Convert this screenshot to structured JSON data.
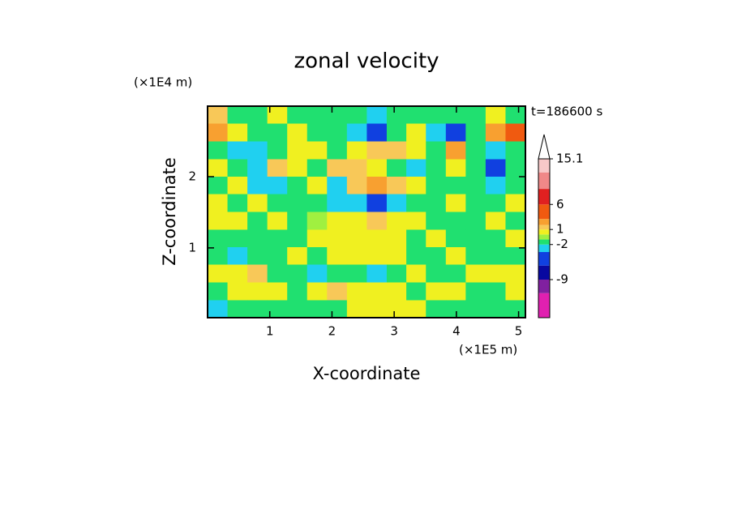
{
  "chart_data": {
    "type": "contour",
    "title": "zonal velocity",
    "xlabel": "X-coordinate",
    "ylabel": "Z-coordinate",
    "xunit": "(×1E5 m)",
    "yunit": "(×1E4 m)",
    "annotation": "t=186600 s",
    "xlim": [
      0,
      5.11
    ],
    "ylim": [
      0.02,
      2.99
    ],
    "xticks": [
      1,
      2,
      3,
      4,
      5
    ],
    "yticks": [
      1,
      2
    ],
    "x": [
      0.16,
      0.48,
      0.8,
      1.12,
      1.44,
      1.76,
      2.08,
      2.4,
      2.72,
      3.04,
      3.35,
      3.67,
      3.99,
      4.31,
      4.63,
      4.95
    ],
    "y": [
      2.87,
      2.62,
      2.37,
      2.12,
      1.88,
      1.63,
      1.38,
      1.13,
      0.89,
      0.64,
      0.39,
      0.14
    ],
    "z": [
      [
        1.5,
        -1.5,
        -1.5,
        0.5,
        -1.5,
        -1.5,
        -1.5,
        -1.5,
        -2.7,
        -1.5,
        -1.5,
        -1.5,
        -1.5,
        -1.5,
        0.5,
        -1.5
      ],
      [
        2.5,
        0.5,
        -1.5,
        -1.5,
        0.5,
        -1.5,
        -1.5,
        -2.7,
        -5,
        -1.5,
        0.5,
        -2.7,
        -5,
        -1.5,
        2.5,
        4
      ],
      [
        -1.5,
        -2.7,
        -2.7,
        -1.5,
        0.5,
        0.5,
        -1.5,
        0.5,
        1.5,
        1.5,
        0.5,
        -1.5,
        2.5,
        -1.5,
        -2.7,
        -1.5
      ],
      [
        0.5,
        -1.5,
        -2.7,
        1.5,
        0.5,
        -1.5,
        1.5,
        1.5,
        0.5,
        -1.5,
        -2.7,
        -1.5,
        0.5,
        -1.5,
        -5,
        -1.5
      ],
      [
        -1.5,
        0.5,
        -2.7,
        -2.7,
        -1.5,
        0.5,
        -2.7,
        1.5,
        2.5,
        1.5,
        0.5,
        -1.5,
        -1.5,
        -1.5,
        -2.7,
        -1.5
      ],
      [
        0.5,
        -1.5,
        0.5,
        -1.5,
        -1.5,
        -1.5,
        -2.7,
        -2.7,
        -5,
        -2.7,
        -1.5,
        -1.5,
        0.5,
        -1.5,
        -1.5,
        0.5
      ],
      [
        0.5,
        0.5,
        -1.5,
        0.5,
        -1.5,
        -0.5,
        0.5,
        0.5,
        1.5,
        0.5,
        0.5,
        -1.5,
        -1.5,
        -1.5,
        0.5,
        -1.5
      ],
      [
        -1.5,
        -1.5,
        -1.5,
        -1.5,
        -1.5,
        0.5,
        0.5,
        0.5,
        0.5,
        0.5,
        -1.5,
        0.5,
        -1.5,
        -1.5,
        -1.5,
        0.5
      ],
      [
        -1.5,
        -2.7,
        -1.5,
        -1.5,
        0.5,
        -1.5,
        0.5,
        0.5,
        0.5,
        0.5,
        -1.5,
        -1.5,
        0.5,
        -1.5,
        -1.5,
        -1.5
      ],
      [
        0.5,
        0.5,
        1.5,
        -1.5,
        -1.5,
        -2.7,
        -1.5,
        -1.5,
        -2.7,
        -1.5,
        0.5,
        -1.5,
        -1.5,
        0.5,
        0.5,
        0.5
      ],
      [
        -1.5,
        0.5,
        0.5,
        0.5,
        -1.5,
        0.5,
        1.5,
        0.5,
        0.5,
        0.5,
        -1.5,
        0.5,
        0.5,
        -1.5,
        -1.5,
        0.5
      ],
      [
        -2.7,
        -1.5,
        -1.5,
        -1.5,
        -1.5,
        -1.5,
        -1.5,
        0.5,
        0.5,
        0.5,
        0.5,
        -1.5,
        -1.5,
        -1.5,
        -1.5,
        -1.5
      ]
    ],
    "colorbar": {
      "clim": [
        -16.6,
        15.1
      ],
      "cticks": [
        15.1,
        6,
        1,
        -2,
        -9
      ],
      "levels": [
        -16.6,
        -11.7,
        -9,
        -6.2,
        -3.5,
        -2,
        -1,
        0,
        1,
        1.9,
        3.1,
        6,
        9.1,
        12.4,
        15.1
      ],
      "colors": [
        "#e020b0",
        "#8020a0",
        "#0808a0",
        "#1040e0",
        "#20d0f0",
        "#20e070",
        "#a0f040",
        "#f0f020",
        "#f8c858",
        "#f8a030",
        "#f05a10",
        "#e02020",
        "#f08888",
        "#f8c8c8"
      ],
      "extend_color": "#ffffff"
    }
  }
}
